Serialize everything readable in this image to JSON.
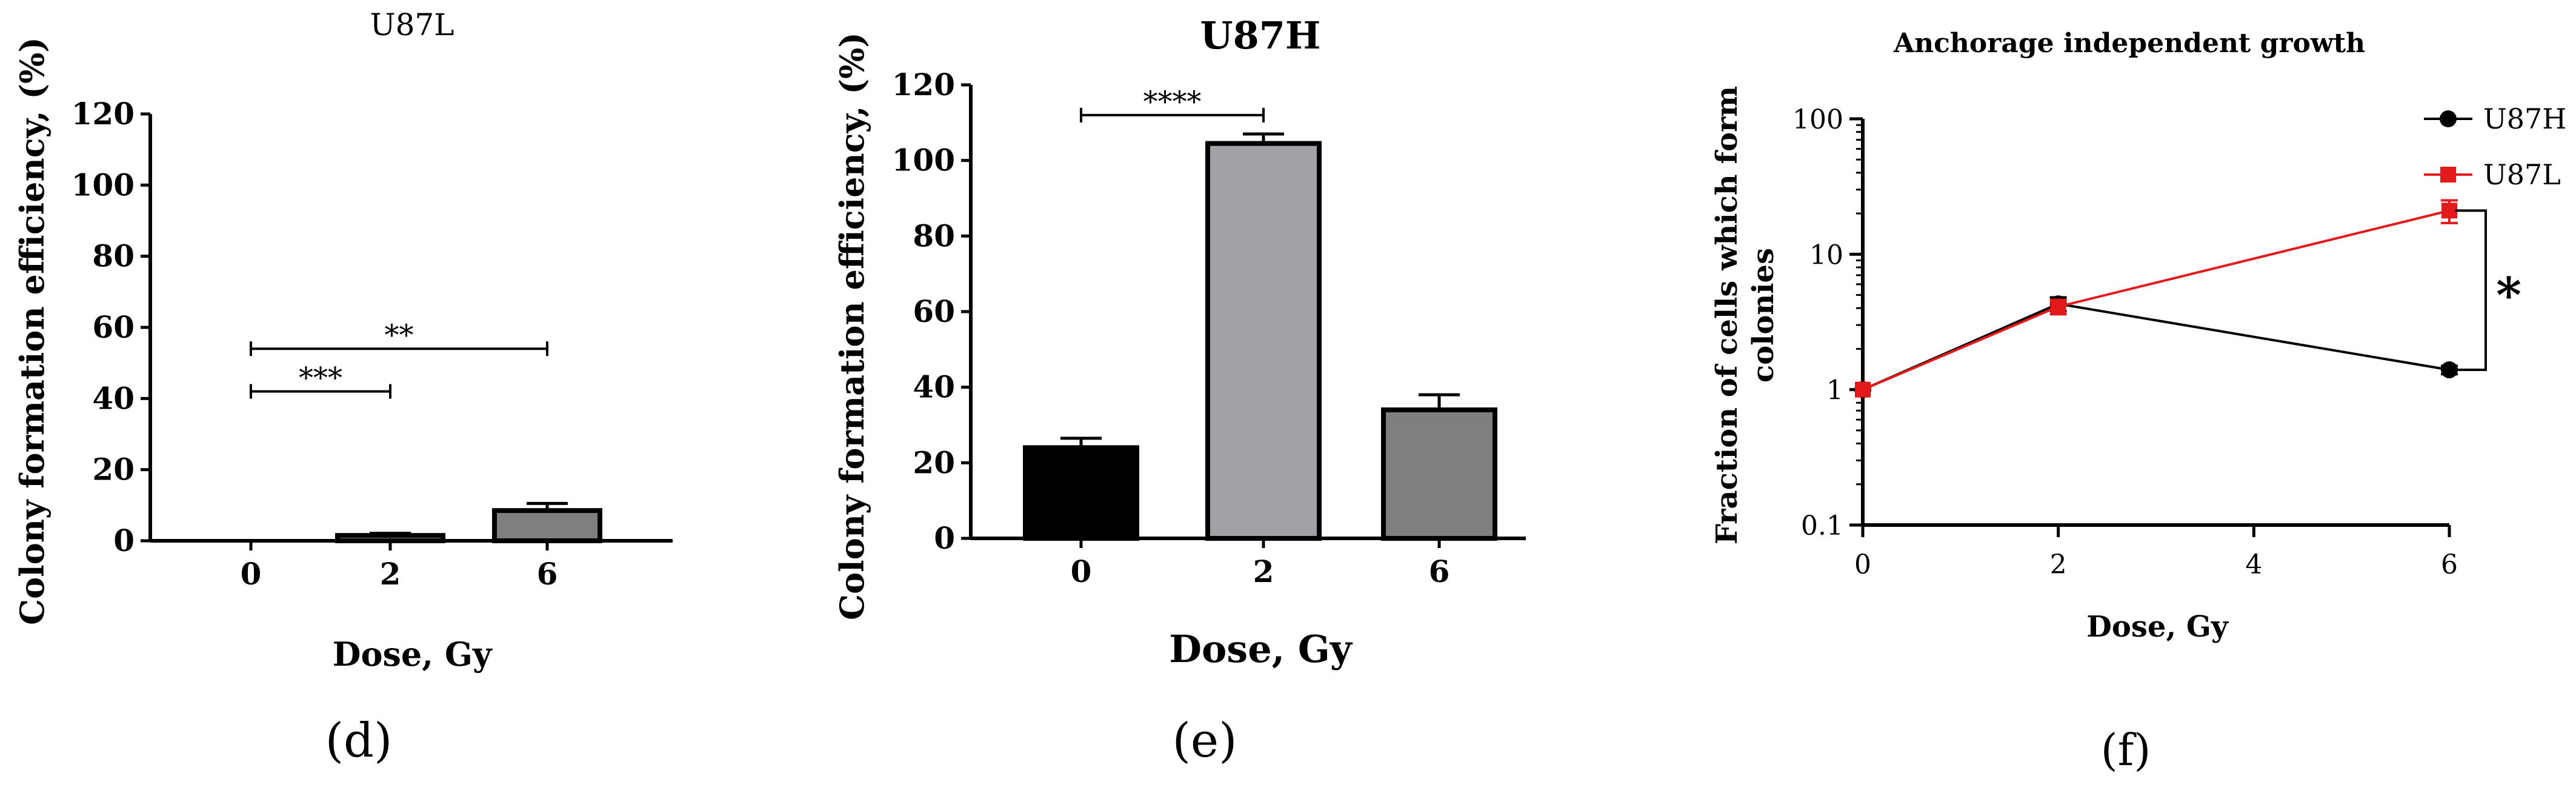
{
  "figure": {
    "panel_labels": [
      "(d)",
      "(e)",
      "(f)"
    ]
  },
  "chart_data": [
    {
      "type": "bar",
      "title": "U87L",
      "xlabel": "Dose, Gy",
      "ylabel": "Colony formation efficiency, (%)",
      "categories": [
        "0",
        "2",
        "6"
      ],
      "values": [
        0,
        1.5,
        8.5
      ],
      "errors": [
        0,
        0.6,
        2.0
      ],
      "bar_colors": [
        "#000000",
        "#a1a1a6",
        "#7f7f7f"
      ],
      "ylim": [
        0,
        120
      ],
      "yticks": [
        0,
        20,
        40,
        60,
        80,
        100,
        120
      ],
      "significance": [
        {
          "from": 0,
          "to": 1,
          "level": 42,
          "label": "***"
        },
        {
          "from": 0,
          "to": 2,
          "level": 54,
          "label": "**"
        }
      ]
    },
    {
      "type": "bar",
      "title": "U87H",
      "xlabel": "Dose, Gy",
      "ylabel": "Colony formation efficiency, (%)",
      "categories": [
        "0",
        "2",
        "6"
      ],
      "values": [
        24,
        104.5,
        34
      ],
      "errors": [
        2.5,
        2.5,
        4
      ],
      "bar_colors": [
        "#000000",
        "#a1a1a6",
        "#7f7f7f"
      ],
      "ylim": [
        0,
        120
      ],
      "yticks": [
        0,
        20,
        40,
        60,
        80,
        100,
        120
      ],
      "significance": [
        {
          "from": 0,
          "to": 1,
          "level": 112,
          "label": "****"
        }
      ]
    },
    {
      "type": "line",
      "title": "Anchorage independent growth",
      "xlabel": "Dose, Gy",
      "ylabel": "Fraction of cells which form colonies",
      "yscale": "log",
      "xlim": [
        0,
        6
      ],
      "xticks": [
        0,
        2,
        4,
        6
      ],
      "ylim": [
        0.1,
        100
      ],
      "yticks": [
        "0.1",
        "1",
        "10",
        "100"
      ],
      "legend_position": "top-right",
      "series": [
        {
          "name": "U87H",
          "color": "#000000",
          "marker": "circle",
          "x": [
            0,
            2,
            6
          ],
          "y": [
            1,
            4.3,
            1.4
          ],
          "err": [
            0,
            0.5,
            0.1
          ]
        },
        {
          "name": "U87L",
          "color": "#e31a1c",
          "marker": "square",
          "x": [
            0,
            2,
            6
          ],
          "y": [
            1,
            4.1,
            21
          ],
          "err": [
            0,
            0.5,
            4
          ]
        }
      ],
      "significance": [
        {
          "x": 6,
          "from_y": 1.4,
          "to_y": 21,
          "label": "*"
        }
      ]
    }
  ]
}
